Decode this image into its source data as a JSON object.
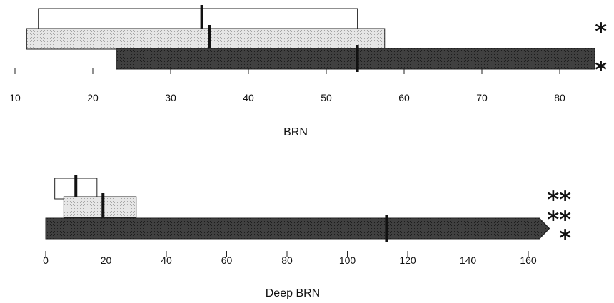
{
  "chart_data": [
    {
      "type": "bar",
      "xlabel": "BRN",
      "xlim": [
        10,
        85
      ],
      "xticks": [
        10,
        20,
        30,
        40,
        50,
        60,
        70,
        80
      ],
      "bars": [
        {
          "start": 13,
          "end": 54,
          "median": 34,
          "fill": "#ffffff",
          "significance": "*"
        },
        {
          "start": 11.5,
          "end": 57.5,
          "median": 35,
          "fill": "#e4e4e4",
          "significance": ""
        },
        {
          "start": 23,
          "end": 84.5,
          "median": 54,
          "fill": "#3c3c3c",
          "significance": "*"
        }
      ]
    },
    {
      "type": "bar",
      "xlabel": "Deep BRN",
      "xlim": [
        0,
        168
      ],
      "xticks": [
        0,
        20,
        40,
        60,
        80,
        100,
        120,
        140,
        160
      ],
      "bars": [
        {
          "start": 3,
          "end": 17,
          "median": 10,
          "fill": "#ffffff",
          "significance": "**"
        },
        {
          "start": 6,
          "end": 30,
          "median": 19,
          "fill": "#e4e4e4",
          "significance": "**"
        },
        {
          "start": 0,
          "end": 167,
          "median": 113,
          "fill": "#3c3c3c",
          "significance": "*",
          "open_ended": true
        }
      ]
    }
  ]
}
